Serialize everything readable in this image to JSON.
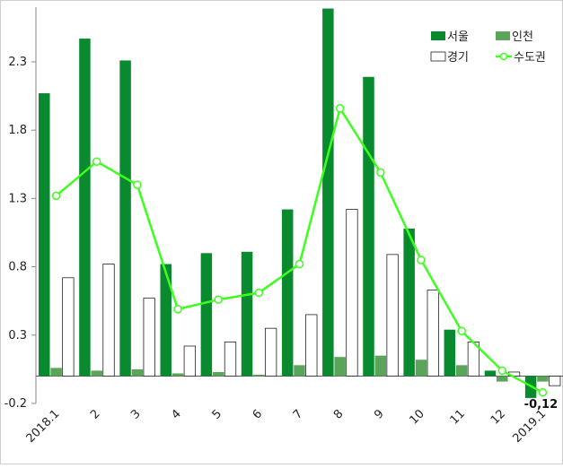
{
  "chart_data": {
    "type": "bar",
    "categories": [
      "2018.1",
      "2",
      "3",
      "4",
      "5",
      "6",
      "7",
      "8",
      "9",
      "10",
      "11",
      "12",
      "2019.1"
    ],
    "series": [
      {
        "name": "서울",
        "kind": "bar",
        "color": "#0a8a2e",
        "values": [
          2.07,
          2.47,
          2.31,
          0.82,
          0.9,
          0.91,
          1.22,
          2.69,
          2.19,
          1.08,
          0.34,
          0.04,
          -0.16
        ]
      },
      {
        "name": "인천",
        "kind": "bar",
        "color": "#5aa55a",
        "values": [
          0.06,
          0.04,
          0.05,
          0.02,
          0.03,
          0.01,
          0.08,
          0.14,
          0.15,
          0.12,
          0.08,
          -0.04,
          -0.04
        ]
      },
      {
        "name": "경기",
        "kind": "bar",
        "color": "#ffffff",
        "values": [
          0.72,
          0.82,
          0.57,
          0.22,
          0.25,
          0.35,
          0.45,
          1.22,
          0.89,
          0.63,
          0.25,
          0.03,
          -0.07
        ]
      },
      {
        "name": "수도권",
        "kind": "line",
        "color": "#3cff1e",
        "values": [
          1.32,
          1.57,
          1.4,
          0.49,
          0.56,
          0.61,
          0.82,
          1.96,
          1.49,
          0.85,
          0.33,
          0.04,
          -0.12
        ]
      }
    ],
    "y_ticks": [
      "-0.2",
      "0.3",
      "0.8",
      "1.3",
      "1.8",
      "2.3"
    ],
    "ylim": [
      -0.2,
      2.7
    ],
    "annotation": "-0.12",
    "annotation_display": "-0,12",
    "legend_position": "top-right",
    "grid": false,
    "title": "",
    "xlabel": "",
    "ylabel": ""
  }
}
